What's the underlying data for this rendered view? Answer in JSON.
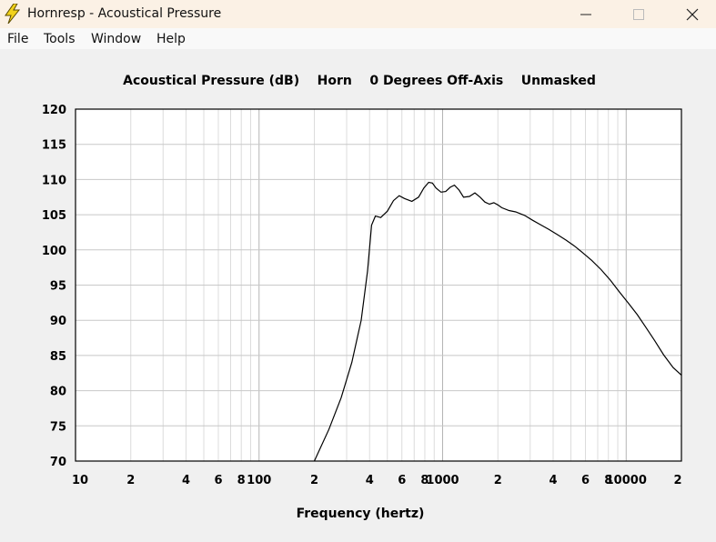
{
  "window": {
    "title": "Hornresp - Acoustical Pressure",
    "icon": "lightning-bolt-icon",
    "controls": [
      "minimize-icon",
      "maximize-icon",
      "close-icon"
    ]
  },
  "menu": {
    "items": [
      {
        "label": "File"
      },
      {
        "label": "Tools"
      },
      {
        "label": "Window"
      },
      {
        "label": "Help"
      }
    ]
  },
  "chart_data": {
    "type": "line",
    "title": "Acoustical Pressure (dB)    Horn    0 Degrees Off-Axis    Unmasked",
    "xlabel": "Frequency (hertz)",
    "ylabel": "",
    "x_scale": "log",
    "xlim": [
      10,
      20000
    ],
    "ylim": [
      70,
      120
    ],
    "grid": true,
    "x_ticks": [
      {
        "value": 10,
        "label": "10"
      },
      {
        "value": 20,
        "label": "2"
      },
      {
        "value": 40,
        "label": "4"
      },
      {
        "value": 60,
        "label": "6"
      },
      {
        "value": 80,
        "label": "8"
      },
      {
        "value": 100,
        "label": "100"
      },
      {
        "value": 200,
        "label": "2"
      },
      {
        "value": 400,
        "label": "4"
      },
      {
        "value": 600,
        "label": "6"
      },
      {
        "value": 800,
        "label": "8"
      },
      {
        "value": 1000,
        "label": "1000"
      },
      {
        "value": 2000,
        "label": "2"
      },
      {
        "value": 4000,
        "label": "4"
      },
      {
        "value": 6000,
        "label": "6"
      },
      {
        "value": 8000,
        "label": "8"
      },
      {
        "value": 10000,
        "label": "10000"
      },
      {
        "value": 20000,
        "label": "2"
      }
    ],
    "y_ticks": [
      70,
      75,
      80,
      85,
      90,
      95,
      100,
      105,
      110,
      115,
      120
    ],
    "series": [
      {
        "x": [
          200,
          240,
          280,
          320,
          360,
          390,
          410,
          430,
          460,
          500,
          540,
          580,
          620,
          680,
          740,
          790,
          840,
          880,
          920,
          980,
          1040,
          1100,
          1160,
          1230,
          1300,
          1400,
          1500,
          1600,
          1700,
          1800,
          1900,
          2000,
          2100,
          2300,
          2500,
          2800,
          3100,
          3400,
          3800,
          4200,
          4700,
          5200,
          5800,
          6500,
          7300,
          8200,
          9200,
          10300,
          11500,
          12800,
          14300,
          16000,
          18000,
          20000
        ],
        "y": [
          70,
          74.5,
          79,
          84,
          90,
          97,
          103.5,
          104.8,
          104.6,
          105.5,
          107,
          107.7,
          107.3,
          106.9,
          107.5,
          108.8,
          109.6,
          109.5,
          108.8,
          108.2,
          108.3,
          108.9,
          109.2,
          108.5,
          107.5,
          107.6,
          108.1,
          107.5,
          106.8,
          106.5,
          106.7,
          106.4,
          106.0,
          105.6,
          105.4,
          104.9,
          104.2,
          103.6,
          102.9,
          102.2,
          101.4,
          100.6,
          99.6,
          98.5,
          97.2,
          95.7,
          94.0,
          92.4,
          90.8,
          89.0,
          87.1,
          85.1,
          83.3,
          82.2
        ]
      }
    ]
  }
}
